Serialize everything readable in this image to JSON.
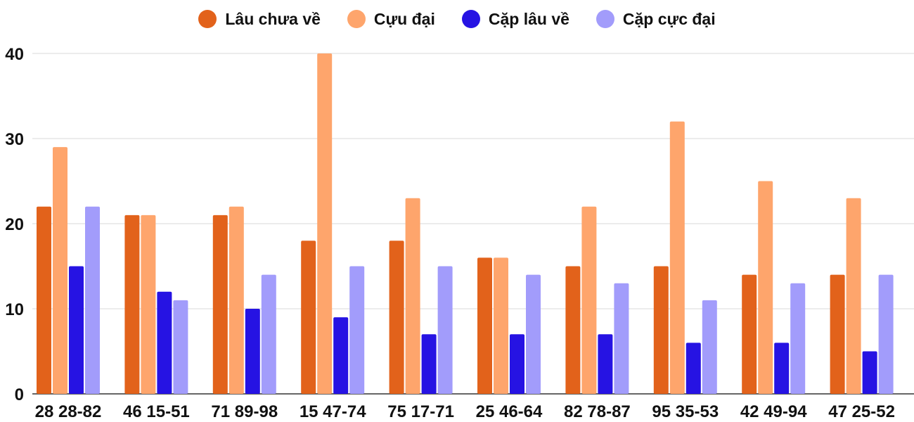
{
  "chart_data": {
    "type": "bar",
    "categories": [
      "28 28-82",
      "46 15-51",
      "71 89-98",
      "15 47-74",
      "75 17-71",
      "25 46-64",
      "82 78-87",
      "95 35-53",
      "42 49-94",
      "47 25-52"
    ],
    "series": [
      {
        "name": "Lâu chưa về",
        "color": "#e2621b",
        "values": [
          22,
          21,
          21,
          18,
          18,
          16,
          15,
          15,
          14,
          14
        ]
      },
      {
        "name": "Cựu đại",
        "color": "#fea56c",
        "values": [
          29,
          21,
          22,
          40,
          23,
          16,
          22,
          32,
          25,
          23
        ]
      },
      {
        "name": "Cặp lâu về",
        "color": "#2613e3",
        "values": [
          15,
          12,
          10,
          9,
          7,
          7,
          7,
          6,
          6,
          5
        ]
      },
      {
        "name": "Cặp cực đại",
        "color": "#a29cfb",
        "values": [
          22,
          11,
          14,
          15,
          15,
          14,
          13,
          11,
          13,
          14
        ]
      }
    ],
    "yticks": [
      "0",
      "10",
      "20",
      "30",
      "40"
    ],
    "ylim": [
      0,
      40
    ],
    "grid": true,
    "legend": "top-center"
  }
}
